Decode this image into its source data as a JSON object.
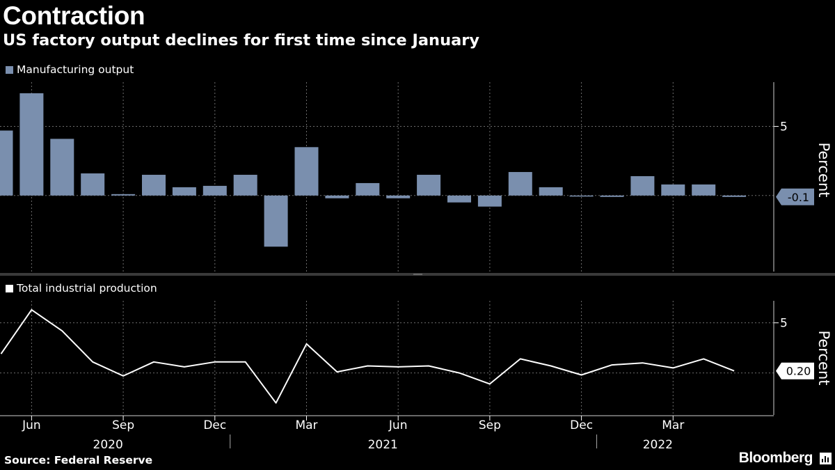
{
  "header": {
    "title": "Contraction",
    "subtitle": "US factory output declines for first time since January"
  },
  "footer": {
    "source": "Source: Federal Reserve",
    "brand": "Bloomberg",
    "brand_icon": "bloomberg-chart-icon"
  },
  "colors": {
    "background": "#000000",
    "bar": "#7a8fae",
    "line": "#ffffff",
    "grid": "#6e6e6e",
    "divider": "#3a3a3a"
  },
  "chart_data": [
    {
      "type": "bar",
      "legend": "Manufacturing output",
      "ylabel": "Percent",
      "ylim": [
        -5.5,
        8.2
      ],
      "yticks": [
        5
      ],
      "months": [
        "2020-05",
        "2020-06",
        "2020-07",
        "2020-08",
        "2020-09",
        "2020-10",
        "2020-11",
        "2020-12",
        "2021-01",
        "2021-02",
        "2021-03",
        "2021-04",
        "2021-05",
        "2021-06",
        "2021-07",
        "2021-08",
        "2021-09",
        "2021-10",
        "2021-11",
        "2021-12",
        "2022-01",
        "2022-02",
        "2022-03",
        "2022-04",
        "2022-05"
      ],
      "values": [
        4.7,
        7.4,
        4.1,
        1.6,
        0.1,
        1.5,
        0.6,
        0.7,
        1.5,
        -3.7,
        3.5,
        -0.2,
        0.9,
        -0.2,
        1.5,
        -0.5,
        -0.8,
        1.7,
        0.6,
        -0.02,
        -0.1,
        1.4,
        0.8,
        0.8,
        -0.1
      ],
      "last_value_label": "-0.1"
    },
    {
      "type": "line",
      "legend": "Total industrial production",
      "ylabel": "Percent",
      "ylim": [
        -4.2,
        7.2
      ],
      "yticks": [
        5
      ],
      "months": [
        "2020-05",
        "2020-06",
        "2020-07",
        "2020-08",
        "2020-09",
        "2020-10",
        "2020-11",
        "2020-12",
        "2021-01",
        "2021-02",
        "2021-03",
        "2021-04",
        "2021-05",
        "2021-06",
        "2021-07",
        "2021-08",
        "2021-09",
        "2021-10",
        "2021-11",
        "2021-12",
        "2022-01",
        "2022-02",
        "2022-03",
        "2022-04",
        "2022-05"
      ],
      "values": [
        1.9,
        6.3,
        4.2,
        1.1,
        -0.3,
        1.1,
        0.6,
        1.1,
        1.1,
        -3.0,
        2.9,
        0.1,
        0.7,
        0.6,
        0.7,
        0.0,
        -1.1,
        1.4,
        0.7,
        -0.2,
        0.8,
        1.0,
        0.5,
        1.4,
        0.2
      ],
      "last_value_label": "0.20"
    }
  ],
  "x_axis": {
    "month_ticks": [
      {
        "label": "Jun",
        "month": "2020-06"
      },
      {
        "label": "Sep",
        "month": "2020-09"
      },
      {
        "label": "Dec",
        "month": "2020-12"
      },
      {
        "label": "Mar",
        "month": "2021-03"
      },
      {
        "label": "Jun",
        "month": "2021-06"
      },
      {
        "label": "Sep",
        "month": "2021-09"
      },
      {
        "label": "Dec",
        "month": "2021-12"
      },
      {
        "label": "Mar",
        "month": "2022-03"
      }
    ],
    "years": [
      {
        "label": "2020",
        "month_index": 3.5
      },
      {
        "label": "2021",
        "month_index": 12.5
      },
      {
        "label": "2022",
        "month_index": 21.5
      }
    ],
    "year_separators": [
      7.5,
      19.5
    ]
  }
}
